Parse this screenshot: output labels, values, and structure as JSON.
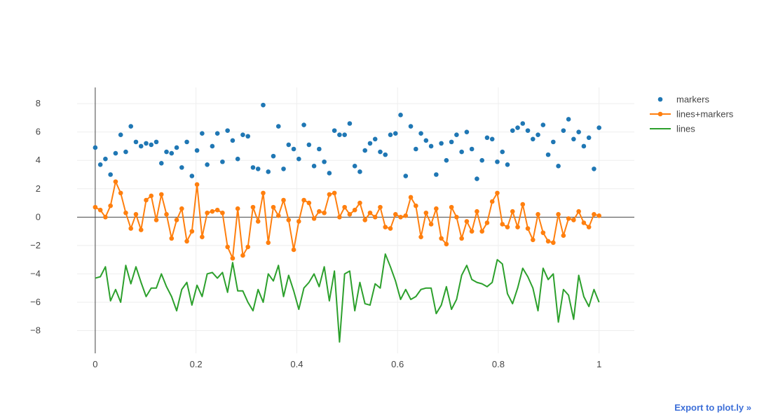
{
  "chart_data": {
    "type": "scatter",
    "title": "",
    "xlabel": "",
    "ylabel": "",
    "xlim": [
      -0.036,
      1.07
    ],
    "ylim": [
      -9.6,
      9.14
    ],
    "grid": true,
    "legend_position": "top-right",
    "x_ticks": [
      "0",
      "0.2",
      "0.4",
      "0.6",
      "0.8",
      "1"
    ],
    "x_tick_values": [
      0,
      0.2,
      0.4,
      0.6,
      0.8,
      1
    ],
    "y_ticks": [
      "−8",
      "−6",
      "−4",
      "−2",
      "0",
      "2",
      "4",
      "6",
      "8"
    ],
    "y_tick_values": [
      -8,
      -6,
      -4,
      -2,
      0,
      2,
      4,
      6,
      8
    ],
    "x": "linspace(0,1,100)",
    "series": [
      {
        "name": "markers",
        "mode": "markers",
        "color": "#1f77b4",
        "values": [
          4.9,
          3.7,
          4.1,
          3.0,
          4.5,
          5.8,
          4.6,
          6.4,
          5.3,
          5.0,
          5.2,
          5.1,
          5.3,
          3.8,
          4.6,
          4.5,
          4.9,
          3.5,
          5.3,
          2.9,
          4.7,
          5.9,
          3.7,
          5.0,
          5.9,
          3.9,
          6.1,
          5.4,
          4.1,
          5.8,
          5.7,
          3.5,
          3.4,
          7.9,
          3.2,
          4.3,
          6.4,
          3.4,
          5.1,
          4.8,
          4.1,
          6.5,
          5.1,
          3.6,
          4.8,
          3.9,
          3.1,
          6.1,
          5.8,
          5.8,
          6.6,
          3.6,
          3.2,
          4.7,
          5.2,
          5.5,
          4.6,
          4.4,
          5.8,
          5.9,
          7.2,
          2.9,
          6.4,
          4.8,
          5.9,
          5.4,
          5.0,
          3.0,
          5.2,
          4.0,
          5.3,
          5.8,
          4.6,
          6.0,
          4.8,
          2.7,
          4.0,
          5.6,
          5.5,
          3.9,
          4.6,
          3.7,
          6.1,
          6.3,
          6.6,
          6.1,
          5.5,
          5.8,
          6.5,
          4.4,
          5.3,
          3.6,
          6.1,
          6.9,
          5.5,
          6.0,
          5.0,
          5.6,
          3.4,
          6.3
        ]
      },
      {
        "name": "lines+markers",
        "mode": "lines+markers",
        "color": "#ff7f0e",
        "values": [
          0.7,
          0.5,
          0.0,
          0.8,
          2.5,
          1.7,
          0.3,
          -0.8,
          0.2,
          -0.9,
          1.2,
          1.5,
          -0.2,
          1.6,
          0.2,
          -1.5,
          -0.2,
          0.6,
          -1.7,
          -1.0,
          2.3,
          -1.4,
          0.3,
          0.4,
          0.5,
          0.3,
          -2.1,
          -2.9,
          0.6,
          -2.7,
          -2.1,
          0.7,
          -0.3,
          1.7,
          -1.8,
          0.7,
          0.1,
          1.2,
          -0.2,
          -2.3,
          -0.3,
          1.2,
          1.0,
          -0.1,
          0.4,
          0.3,
          1.6,
          1.7,
          0.0,
          0.7,
          0.2,
          0.5,
          1.0,
          -0.2,
          0.3,
          0.0,
          0.7,
          -0.7,
          -0.8,
          0.2,
          0.0,
          0.1,
          1.4,
          0.8,
          -1.4,
          0.3,
          -0.5,
          0.6,
          -1.5,
          -1.9,
          0.7,
          0.0,
          -1.5,
          -0.3,
          -1.0,
          0.4,
          -1.0,
          -0.4,
          1.1,
          1.7,
          -0.5,
          -0.7,
          0.4,
          -0.7,
          0.9,
          -0.8,
          -1.6,
          0.2,
          -1.1,
          -1.7,
          -1.8,
          0.2,
          -1.3,
          -0.1,
          -0.2,
          0.4,
          -0.4,
          -0.7,
          0.2,
          0.1
        ]
      },
      {
        "name": "lines",
        "mode": "lines",
        "color": "#2ca02c",
        "values": [
          -4.3,
          -4.2,
          -3.5,
          -5.9,
          -5.1,
          -6.0,
          -3.4,
          -4.7,
          -3.5,
          -4.6,
          -5.6,
          -5.0,
          -5.0,
          -4.0,
          -4.9,
          -5.6,
          -6.6,
          -5.1,
          -4.6,
          -6.2,
          -4.8,
          -5.6,
          -4.0,
          -3.9,
          -4.3,
          -3.9,
          -5.3,
          -3.2,
          -5.2,
          -5.2,
          -6.0,
          -6.6,
          -5.1,
          -6.0,
          -4.0,
          -4.5,
          -3.4,
          -5.6,
          -4.1,
          -5.2,
          -6.5,
          -5.0,
          -4.6,
          -4.0,
          -4.9,
          -3.5,
          -5.9,
          -3.8,
          -8.8,
          -4.0,
          -3.8,
          -6.6,
          -4.6,
          -6.1,
          -6.2,
          -4.7,
          -5.0,
          -2.6,
          -3.5,
          -4.5,
          -5.8,
          -5.1,
          -5.8,
          -5.6,
          -5.1,
          -5.0,
          -5.0,
          -6.8,
          -6.2,
          -4.9,
          -6.5,
          -5.8,
          -4.1,
          -3.4,
          -4.4,
          -4.6,
          -4.7,
          -4.9,
          -4.6,
          -3.0,
          -3.3,
          -5.4,
          -6.1,
          -5.0,
          -3.6,
          -4.2,
          -5.0,
          -6.6,
          -3.6,
          -4.4,
          -4.0,
          -7.4,
          -5.1,
          -5.5,
          -7.2,
          -4.1,
          -5.6,
          -6.3,
          -5.1,
          -6.0
        ]
      }
    ]
  },
  "export_link": "Export to plot.ly »"
}
